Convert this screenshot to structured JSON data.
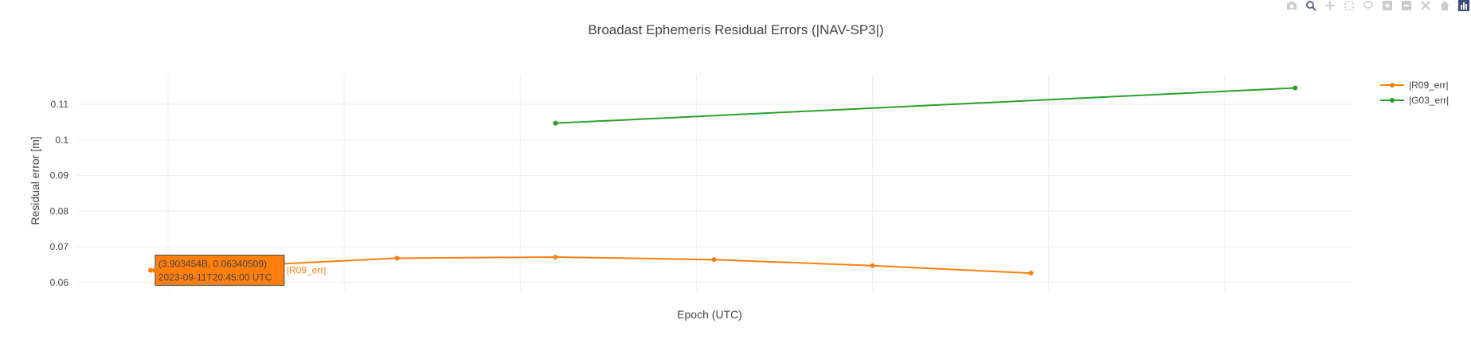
{
  "colors": {
    "series_r09": "#ff7f0e",
    "series_g03": "#2ca02c",
    "grid": "#eeeeee",
    "text": "#444444",
    "modebar": "#cccccc",
    "modebar_active": "#5d6e85"
  },
  "modebar": {
    "icons": [
      "camera-icon",
      "zoom-icon",
      "pan-icon",
      "box-select-icon",
      "lasso-select-icon",
      "zoom-in-icon",
      "zoom-out-icon",
      "autoscale-icon",
      "reset-axes-icon",
      "plotly-logo-icon"
    ]
  },
  "hover": {
    "series_index": 0,
    "point_index": 0,
    "line1": "(3.903454B, 0.06340509)",
    "line2": "2023-09-11T20:45:00 UTC",
    "name": "|R09_err|"
  },
  "chart_data": {
    "type": "line",
    "title": "Broadast Ephemeris Residual Errors (|NAV-SP3|)",
    "xlabel": "Epoch (UTC)",
    "ylabel": "Residual error [m]",
    "ylim": [
      0.0575,
      0.1185
    ],
    "yticks": [
      0.06,
      0.07,
      0.08,
      0.09,
      0.1,
      0.11
    ],
    "ytick_labels": [
      "0.06",
      "0.07",
      "0.08",
      "0.09",
      "0.1",
      "0.11"
    ],
    "xlim": [
      3.9034498,
      3.9035222
    ],
    "xgrid": [
      3.903455,
      3.903465,
      3.903475,
      3.903485,
      3.903495,
      3.903505,
      3.903515
    ],
    "grid": true,
    "legend_position": "top-right",
    "series": [
      {
        "name": "|R09_err|",
        "x": [
          3.903454,
          3.903468,
          3.903477,
          3.903486,
          3.903495,
          3.903504
        ],
        "y": [
          0.06340509,
          0.0668,
          0.0671,
          0.0664,
          0.0647,
          0.0626
        ]
      },
      {
        "name": "|G03_err|",
        "x": [
          3.903477,
          3.903519
        ],
        "y": [
          0.1047,
          0.1146
        ]
      }
    ]
  }
}
